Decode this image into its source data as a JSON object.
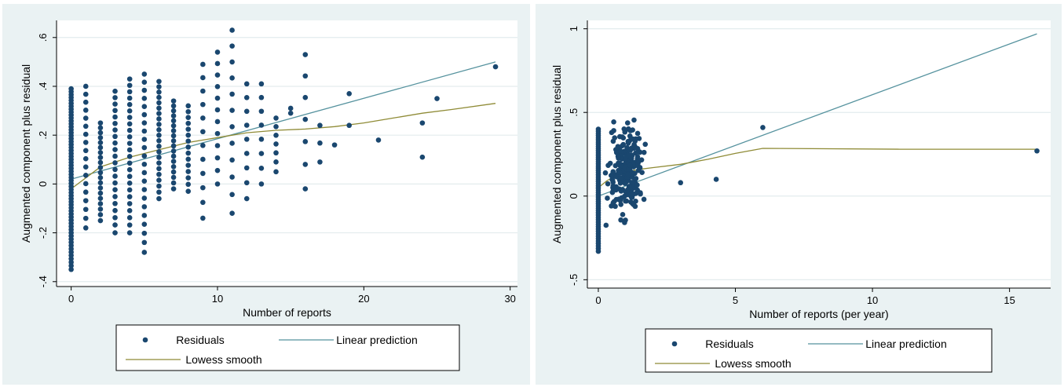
{
  "colors": {
    "panel_background": "#eaf2f3",
    "plot_background": "#ffffff",
    "gridline": "#e3ecee",
    "residuals": "#1a476f",
    "linear_prediction": "#55929e",
    "lowess_smooth": "#8f8b36"
  },
  "chart_data": [
    {
      "type": "scatter",
      "title": "",
      "xlabel": "Number of reports",
      "ylabel": "Augmented component plus residual",
      "xlim": [
        -1,
        30.5
      ],
      "ylim": [
        -0.42,
        0.67
      ],
      "xticks": [
        0,
        10,
        20,
        30
      ],
      "xtick_labels": [
        "0",
        "10",
        "20",
        "30"
      ],
      "yticks": [
        -0.4,
        -0.2,
        0,
        0.2,
        0.4,
        0.6
      ],
      "ytick_labels": [
        "-.4",
        "-.2",
        "0",
        ".2",
        ".4",
        ".6"
      ],
      "grid": true,
      "legend": {
        "position": "bottom",
        "entries": [
          "Residuals",
          "Linear prediction",
          "Lowess smooth"
        ]
      },
      "series": [
        {
          "name": "Residuals",
          "type": "scatter",
          "columns": [
            {
              "x": 0,
              "ymin": -0.35,
              "ymax": 0.39,
              "n": 60
            },
            {
              "x": 1,
              "ymin": -0.18,
              "ymax": 0.4,
              "n": 18
            },
            {
              "x": 2,
              "ymin": -0.15,
              "ymax": 0.25,
              "n": 20
            },
            {
              "x": 3,
              "ymin": -0.2,
              "ymax": 0.38,
              "n": 22
            },
            {
              "x": 4,
              "ymin": -0.2,
              "ymax": 0.43,
              "n": 24
            },
            {
              "x": 5,
              "ymin": -0.28,
              "ymax": 0.45,
              "n": 22
            },
            {
              "x": 6,
              "ymin": -0.06,
              "ymax": 0.42,
              "n": 22
            },
            {
              "x": 7,
              "ymin": -0.02,
              "ymax": 0.34,
              "n": 18
            },
            {
              "x": 8,
              "ymin": -0.03,
              "ymax": 0.32,
              "n": 15
            },
            {
              "x": 9,
              "ymin": -0.14,
              "ymax": 0.49,
              "n": 12
            },
            {
              "x": 10,
              "ymin": 0.0,
              "ymax": 0.54,
              "n": 12
            },
            {
              "x": 11,
              "ymin": -0.12,
              "ymax": 0.63,
              "n": 12
            },
            {
              "x": 12,
              "ymin": -0.06,
              "ymax": 0.41,
              "n": 9
            },
            {
              "x": 13,
              "ymin": 0.0,
              "ymax": 0.41,
              "n": 8
            },
            {
              "x": 14,
              "ymin": 0.05,
              "ymax": 0.27,
              "n": 7
            },
            {
              "x": 15,
              "ymin": 0.29,
              "ymax": 0.31,
              "n": 2
            },
            {
              "x": 16,
              "ymin": -0.02,
              "ymax": 0.53,
              "n": 7
            },
            {
              "x": 17,
              "ymin": 0.09,
              "ymax": 0.24,
              "n": 3
            }
          ],
          "points": [
            [
              18,
              0.16
            ],
            [
              19,
              0.24
            ],
            [
              19,
              0.37
            ],
            [
              21,
              0.18
            ],
            [
              24,
              0.11
            ],
            [
              24,
              0.25
            ],
            [
              25,
              0.35
            ],
            [
              29,
              0.48
            ]
          ]
        },
        {
          "name": "Linear prediction",
          "type": "line",
          "x": [
            0,
            29
          ],
          "y": [
            0.02,
            0.5
          ]
        },
        {
          "name": "Lowess smooth",
          "type": "line",
          "x": [
            0,
            2,
            4,
            6,
            8,
            10,
            12,
            14,
            16,
            18,
            20,
            22,
            24,
            26,
            29
          ],
          "y": [
            -0.02,
            0.07,
            0.11,
            0.14,
            0.17,
            0.19,
            0.21,
            0.22,
            0.225,
            0.235,
            0.25,
            0.27,
            0.29,
            0.305,
            0.33
          ]
        }
      ]
    },
    {
      "type": "scatter",
      "title": "",
      "xlabel": "Number of reports (per year)",
      "ylabel": "Augmented component plus residual",
      "xlim": [
        -0.4,
        16.5
      ],
      "ylim": [
        -0.55,
        1.05
      ],
      "xticks": [
        0,
        5,
        10,
        15
      ],
      "xtick_labels": [
        "0",
        "5",
        "10",
        "15"
      ],
      "yticks": [
        -0.5,
        0,
        0.5,
        1
      ],
      "ytick_labels": [
        "-.5",
        "0",
        ".5",
        "1"
      ],
      "grid": true,
      "legend": {
        "position": "bottom",
        "entries": [
          "Residuals",
          "Linear prediction",
          "Lowess smooth"
        ]
      },
      "series": [
        {
          "name": "Residuals",
          "type": "scatter",
          "columns": [
            {
              "x": 0,
              "ymin": -0.33,
              "ymax": 0.4,
              "n": 55
            }
          ],
          "cloud": {
            "x_range": [
              0.1,
              2.0
            ],
            "y_range": [
              -0.3,
              0.6
            ],
            "center": [
              1.0,
              0.15
            ],
            "n": 220
          },
          "points": [
            [
              3.0,
              0.08
            ],
            [
              4.3,
              0.1
            ],
            [
              6.0,
              0.41
            ],
            [
              16.0,
              0.27
            ]
          ]
        },
        {
          "name": "Linear prediction",
          "type": "line",
          "x": [
            0,
            16
          ],
          "y": [
            0.0,
            0.97
          ]
        },
        {
          "name": "Lowess smooth",
          "type": "line",
          "x": [
            0,
            0.3,
            0.6,
            1.0,
            1.5,
            2.0,
            3.0,
            4.0,
            5.0,
            6.0,
            11.0,
            16.0
          ],
          "y": [
            0.05,
            0.09,
            0.12,
            0.145,
            0.16,
            0.17,
            0.19,
            0.22,
            0.255,
            0.285,
            0.28,
            0.28
          ]
        }
      ]
    }
  ]
}
